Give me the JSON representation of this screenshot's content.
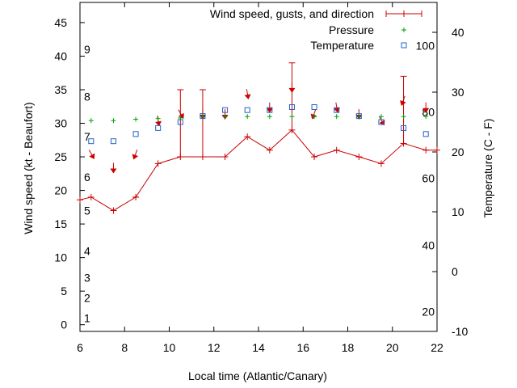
{
  "chart_data": {
    "type": "line",
    "xlabel": "Local time (Atlantic/Canary)",
    "ylabel": "Wind speed (kt - Beaufort)",
    "y2label": "Temperature (C - F)",
    "xlim": [
      6,
      22
    ],
    "ylim": [
      -1,
      48
    ],
    "y2lim": [
      -10,
      45
    ],
    "x_ticks": [
      6,
      8,
      10,
      12,
      14,
      16,
      18,
      20,
      22
    ],
    "y_ticks": [
      0,
      5,
      10,
      15,
      20,
      25,
      30,
      35,
      40,
      45
    ],
    "y2_ticks": [
      -10,
      0,
      10,
      20,
      30,
      40
    ],
    "beaufort_labels": [
      {
        "label": "1",
        "y": 1
      },
      {
        "label": "2",
        "y": 4
      },
      {
        "label": "3",
        "y": 7
      },
      {
        "label": "4",
        "y": 11
      },
      {
        "label": "5",
        "y": 17
      },
      {
        "label": "6",
        "y": 22
      },
      {
        "label": "7",
        "y": 28
      },
      {
        "label": "8",
        "y": 34
      },
      {
        "label": "9",
        "y": 41
      }
    ],
    "fahrenheit_labels": [
      {
        "label": "20",
        "y2": -6.7
      },
      {
        "label": "40",
        "y2": 4.4
      },
      {
        "label": "60",
        "y2": 15.6
      },
      {
        "label": "80",
        "y2": 26.7
      },
      {
        "label": "100",
        "y2": 37.8
      }
    ],
    "legend": {
      "placement": "top-right",
      "entries": [
        "Wind speed, gusts, and direction",
        "Pressure",
        "Temperature"
      ]
    },
    "series": [
      {
        "name": "Wind speed, gusts, and direction",
        "color": "#cc0000",
        "x": [
          6,
          6.5,
          7.5,
          8.5,
          9.5,
          10.5,
          11.5,
          12.5,
          13.5,
          14.5,
          15.5,
          16.5,
          17.5,
          18.5,
          19.5,
          20.5,
          21.5,
          22
        ],
        "values": [
          18.6,
          19,
          17,
          19,
          24,
          25,
          25,
          25,
          28,
          26,
          29,
          25,
          26,
          25,
          24,
          27,
          26,
          26
        ],
        "gusts": [
          null,
          null,
          null,
          19,
          null,
          35,
          35,
          null,
          null,
          null,
          39,
          null,
          null,
          null,
          null,
          37,
          null,
          null
        ],
        "direction_deg": [
          null,
          330,
          360,
          20,
          350,
          330,
          360,
          360,
          350,
          360,
          360,
          20,
          350,
          360,
          330,
          20,
          360,
          null
        ]
      },
      {
        "name": "Pressure",
        "color": "#00a000",
        "x": [
          6.5,
          7.5,
          8.5,
          9.5,
          10.5,
          11.5,
          12.5,
          13.5,
          14.5,
          15.5,
          16.5,
          17.5,
          18.5,
          19.5,
          20.5,
          21.5
        ],
        "values": [
          30.4,
          30.4,
          30.6,
          30.7,
          30.8,
          31,
          31,
          31,
          31,
          31,
          31,
          31,
          31,
          31,
          31,
          31
        ]
      },
      {
        "name": "Temperature",
        "color": "#1e64c8",
        "x": [
          6.5,
          7.5,
          8.5,
          9.5,
          10.5,
          11.5,
          12.5,
          13.5,
          14.5,
          15.5,
          16.5,
          17.5,
          18.5,
          19.5,
          20.5,
          21.5
        ],
        "values": [
          21.8,
          21.8,
          23,
          24,
          25,
          26,
          27,
          27,
          27,
          27.5,
          27.5,
          27,
          26,
          25,
          24,
          23
        ]
      }
    ]
  }
}
